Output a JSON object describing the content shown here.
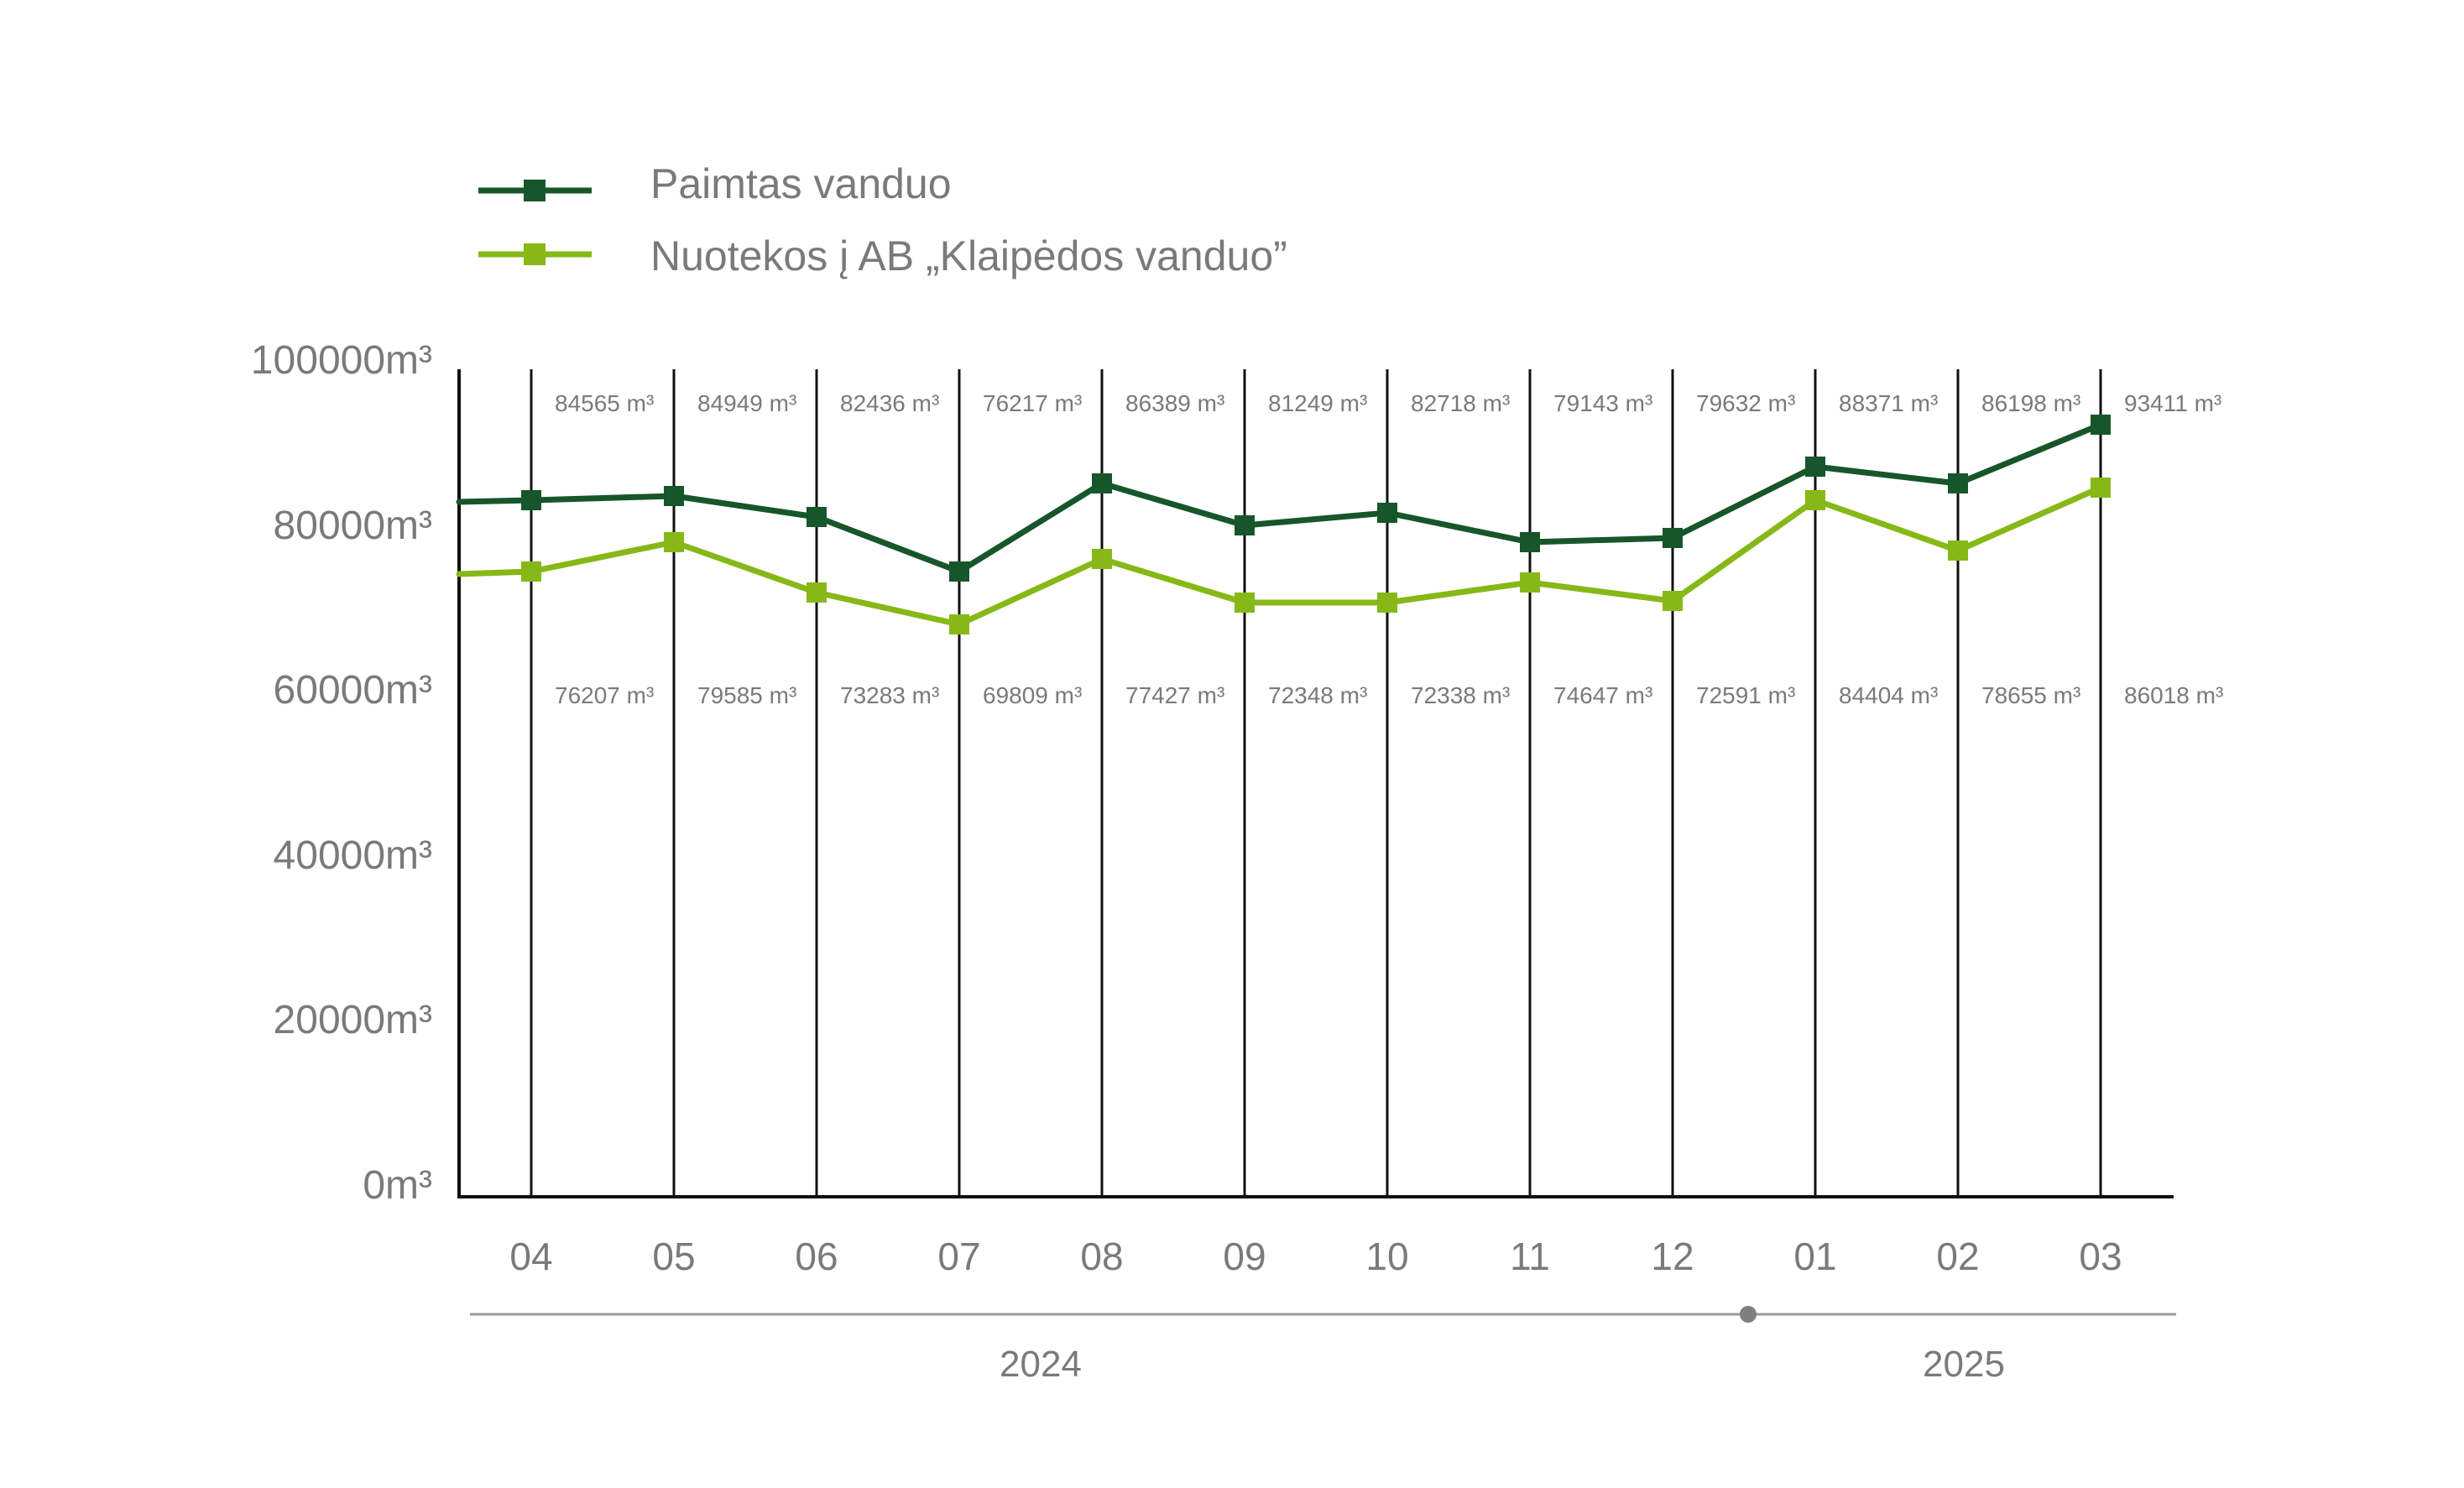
{
  "chart_data": {
    "type": "line",
    "categories": [
      "04",
      "05",
      "06",
      "07",
      "08",
      "09",
      "10",
      "11",
      "12",
      "01",
      "02",
      "03"
    ],
    "years": [
      {
        "label": "2024",
        "from": "04",
        "to": "12"
      },
      {
        "label": "2025",
        "from": "01",
        "to": "03"
      }
    ],
    "y_tick_values": [
      0,
      20000,
      40000,
      60000,
      80000,
      100000
    ],
    "y_tick_labels": [
      "0m³",
      "20000m³",
      "40000m³",
      "60000m³",
      "80000m³",
      "100000m³"
    ],
    "ylim": [
      0,
      100000
    ],
    "legend_position": "top-left",
    "series": [
      {
        "name": "Paimtas vanduo",
        "color": "#17562a",
        "values": [
          84565,
          84949,
          82436,
          76217,
          86389,
          81249,
          82718,
          79143,
          79632,
          88371,
          86198,
          93411
        ],
        "plotted_values": [
          83000,
          83500,
          81000,
          74500,
          85000,
          80000,
          81500,
          78000,
          78500,
          87000,
          85000,
          92000
        ],
        "labels": [
          "84565 m³",
          "84949 m³",
          "82436 m³",
          "76217 m³",
          "86389 m³",
          "81249 m³",
          "82718 m³",
          "79143 m³",
          "79632 m³",
          "88371 m³",
          "86198 m³",
          "93411 m³"
        ],
        "line_start_value": 82800
      },
      {
        "name": "Nuotekos į AB „Klaipėdos vanduo”",
        "color": "#86b817",
        "values": [
          76207,
          79585,
          73283,
          69809,
          77427,
          72348,
          72338,
          74647,
          72591,
          84404,
          78655,
          86018
        ],
        "plotted_values": [
          74500,
          78000,
          72000,
          68200,
          76000,
          70800,
          70800,
          73200,
          71000,
          83000,
          77000,
          84500
        ],
        "labels": [
          "76207 m³",
          "79585 m³",
          "73283 m³",
          "69809 m³",
          "77427 m³",
          "72348 m³",
          "72338 m³",
          "74647 m³",
          "72591 m³",
          "84404 m³",
          "78655 m³",
          "86018 m³"
        ],
        "line_start_value": 74200
      }
    ]
  }
}
